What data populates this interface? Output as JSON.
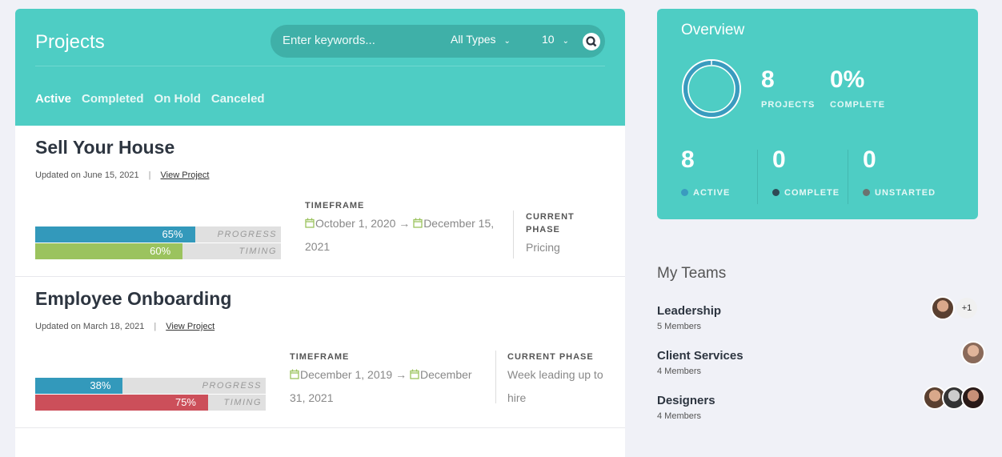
{
  "header": {
    "title": "Projects",
    "search_placeholder": "Enter keywords...",
    "type_filter": "All Types",
    "per_page": "10",
    "tabs": [
      "Active",
      "Completed",
      "On Hold",
      "Canceled"
    ]
  },
  "projects": [
    {
      "title": "Sell Your House",
      "updated": "Updated on June 15, 2021",
      "view": "View Project",
      "progress": 65,
      "progress_label": "65%",
      "timing": 60,
      "timing_label": "60%",
      "timing_color": "#9bc35e",
      "tf_label": "TIMEFRAME",
      "start": "October 1, 2020",
      "end": "December 15, 2021",
      "phase_label": "CURRENT PHASE",
      "phase": "Pricing"
    },
    {
      "title": "Employee Onboarding",
      "updated": "Updated on March 18, 2021",
      "view": "View Project",
      "progress": 38,
      "progress_label": "38%",
      "timing": 75,
      "timing_label": "75%",
      "timing_color": "#cc4f5a",
      "tf_label": "TIMEFRAME",
      "start": "December 1, 2019",
      "end": "December 31, 2021",
      "phase_label": "CURRENT PHASE",
      "phase": "Week leading up to hire"
    }
  ],
  "bar_labels": {
    "progress": "PROGRESS",
    "timing": "TIMING"
  },
  "overview": {
    "title": "Overview",
    "projects": "8",
    "projects_label": "PROJECTS",
    "complete_pct": "0%",
    "complete_label": "COMPLETE",
    "active": "8",
    "active_label": "ACTIVE",
    "complete": "0",
    "complete_count_label": "COMPLETE",
    "unstarted": "0",
    "unstarted_label": "UNSTARTED",
    "colors": {
      "active": "#3a9bbf",
      "complete": "#2f4a55",
      "unstarted": "#6b7370"
    }
  },
  "teams": {
    "title": "My Teams",
    "items": [
      {
        "name": "Leadership",
        "members": "5 Members",
        "extra": "+1"
      },
      {
        "name": "Client Services",
        "members": "4 Members"
      },
      {
        "name": "Designers",
        "members": "4 Members"
      }
    ]
  }
}
